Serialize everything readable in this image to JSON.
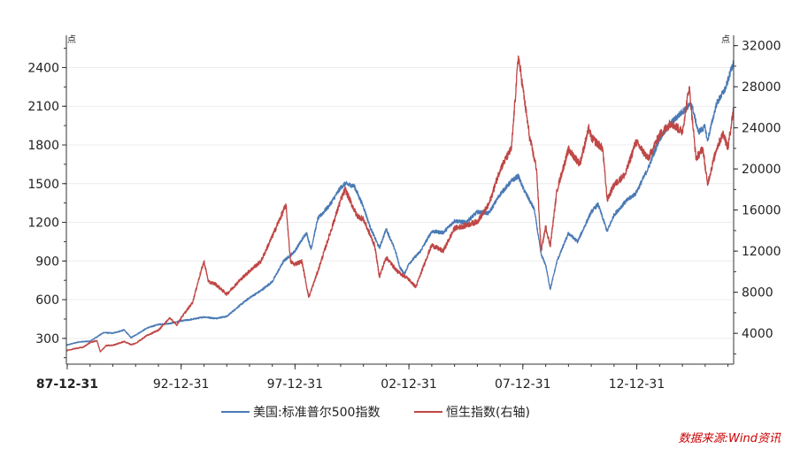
{
  "chart_data": {
    "type": "line",
    "y_unit_left": "点",
    "y_unit_right": "点",
    "x_ticks": [
      "87-12-31",
      "92-12-31",
      "97-12-31",
      "02-12-31",
      "07-12-31",
      "12-12-31"
    ],
    "x_range": [
      1987.96,
      2017.25
    ],
    "y_left_ticks": [
      300,
      600,
      900,
      1200,
      1500,
      1800,
      2100,
      2400
    ],
    "y_left_range": [
      100,
      2650
    ],
    "y_right_ticks": [
      4000,
      8000,
      12000,
      16000,
      20000,
      24000,
      28000,
      32000
    ],
    "y_right_range": [
      1000,
      33000
    ],
    "grid": true,
    "legend_position": "bottom",
    "series": [
      {
        "name": "美国:标准普尔500指数",
        "axis": "left",
        "color": "#4a7ab5",
        "points": [
          [
            1987.96,
            247
          ],
          [
            1988.5,
            272
          ],
          [
            1989.0,
            278
          ],
          [
            1989.6,
            345
          ],
          [
            1990.0,
            340
          ],
          [
            1990.5,
            365
          ],
          [
            1990.8,
            305
          ],
          [
            1991.0,
            326
          ],
          [
            1991.5,
            380
          ],
          [
            1992.0,
            408
          ],
          [
            1992.5,
            415
          ],
          [
            1993.0,
            435
          ],
          [
            1993.5,
            448
          ],
          [
            1994.0,
            466
          ],
          [
            1994.5,
            455
          ],
          [
            1995.0,
            470
          ],
          [
            1995.5,
            545
          ],
          [
            1996.0,
            615
          ],
          [
            1996.5,
            670
          ],
          [
            1997.0,
            740
          ],
          [
            1997.5,
            900
          ],
          [
            1997.96,
            970
          ],
          [
            1998.5,
            1120
          ],
          [
            1998.7,
            990
          ],
          [
            1999.0,
            1229
          ],
          [
            1999.5,
            1330
          ],
          [
            2000.0,
            1469
          ],
          [
            2000.2,
            1500
          ],
          [
            2000.6,
            1480
          ],
          [
            2001.0,
            1320
          ],
          [
            2001.3,
            1160
          ],
          [
            2001.7,
            1000
          ],
          [
            2002.0,
            1148
          ],
          [
            2002.4,
            980
          ],
          [
            2002.6,
            850
          ],
          [
            2002.8,
            800
          ],
          [
            2003.0,
            880
          ],
          [
            2003.5,
            975
          ],
          [
            2004.0,
            1130
          ],
          [
            2004.5,
            1120
          ],
          [
            2005.0,
            1211
          ],
          [
            2005.5,
            1200
          ],
          [
            2006.0,
            1280
          ],
          [
            2006.5,
            1270
          ],
          [
            2007.0,
            1418
          ],
          [
            2007.5,
            1520
          ],
          [
            2007.8,
            1560
          ],
          [
            2008.0,
            1468
          ],
          [
            2008.5,
            1300
          ],
          [
            2008.8,
            950
          ],
          [
            2009.0,
            870
          ],
          [
            2009.2,
            680
          ],
          [
            2009.5,
            900
          ],
          [
            2010.0,
            1115
          ],
          [
            2010.4,
            1050
          ],
          [
            2011.0,
            1280
          ],
          [
            2011.3,
            1340
          ],
          [
            2011.7,
            1130
          ],
          [
            2012.0,
            1257
          ],
          [
            2012.5,
            1360
          ],
          [
            2012.96,
            1426
          ],
          [
            2013.5,
            1620
          ],
          [
            2014.0,
            1848
          ],
          [
            2014.5,
            1970
          ],
          [
            2015.0,
            2058
          ],
          [
            2015.4,
            2120
          ],
          [
            2015.7,
            1900
          ],
          [
            2016.0,
            1940
          ],
          [
            2016.1,
            1830
          ],
          [
            2016.5,
            2120
          ],
          [
            2016.9,
            2240
          ],
          [
            2017.1,
            2360
          ],
          [
            2017.25,
            2450
          ]
        ]
      },
      {
        "name": "恒生指数(右轴)",
        "axis": "right",
        "color": "#bf4746",
        "points": [
          [
            1987.96,
            2303
          ],
          [
            1988.3,
            2500
          ],
          [
            1988.7,
            2650
          ],
          [
            1989.0,
            3100
          ],
          [
            1989.3,
            3300
          ],
          [
            1989.45,
            2200
          ],
          [
            1989.7,
            2800
          ],
          [
            1990.0,
            2837
          ],
          [
            1990.5,
            3200
          ],
          [
            1990.8,
            2900
          ],
          [
            1991.0,
            3024
          ],
          [
            1991.5,
            3800
          ],
          [
            1992.0,
            4297
          ],
          [
            1992.5,
            5500
          ],
          [
            1992.8,
            4800
          ],
          [
            1993.0,
            5512
          ],
          [
            1993.5,
            7000
          ],
          [
            1993.8,
            9500
          ],
          [
            1994.0,
            11000
          ],
          [
            1994.2,
            9000
          ],
          [
            1994.5,
            8800
          ],
          [
            1995.0,
            7800
          ],
          [
            1995.5,
            9000
          ],
          [
            1996.0,
            10073
          ],
          [
            1996.5,
            11000
          ],
          [
            1997.0,
            13451
          ],
          [
            1997.6,
            16500
          ],
          [
            1997.8,
            11000
          ],
          [
            1997.96,
            10722
          ],
          [
            1998.3,
            11000
          ],
          [
            1998.6,
            7500
          ],
          [
            1999.0,
            10048
          ],
          [
            1999.5,
            13500
          ],
          [
            2000.0,
            16962
          ],
          [
            2000.2,
            18000
          ],
          [
            2000.7,
            15500
          ],
          [
            2001.0,
            15095
          ],
          [
            2001.5,
            12500
          ],
          [
            2001.7,
            9500
          ],
          [
            2002.0,
            11397
          ],
          [
            2002.5,
            10000
          ],
          [
            2002.96,
            9321
          ],
          [
            2003.3,
            8500
          ],
          [
            2003.8,
            11500
          ],
          [
            2004.0,
            12575
          ],
          [
            2004.5,
            12000
          ],
          [
            2005.0,
            14230
          ],
          [
            2005.5,
            14500
          ],
          [
            2006.0,
            14876
          ],
          [
            2006.5,
            16500
          ],
          [
            2007.0,
            19964
          ],
          [
            2007.5,
            22000
          ],
          [
            2007.8,
            31000
          ],
          [
            2008.0,
            27813
          ],
          [
            2008.3,
            23000
          ],
          [
            2008.6,
            20000
          ],
          [
            2008.8,
            12000
          ],
          [
            2009.0,
            14387
          ],
          [
            2009.2,
            12500
          ],
          [
            2009.5,
            18000
          ],
          [
            2010.0,
            21873
          ],
          [
            2010.5,
            20500
          ],
          [
            2010.9,
            24000
          ],
          [
            2011.0,
            23035
          ],
          [
            2011.5,
            22000
          ],
          [
            2011.7,
            17000
          ],
          [
            2012.0,
            18434
          ],
          [
            2012.5,
            19500
          ],
          [
            2012.96,
            22657
          ],
          [
            2013.5,
            21000
          ],
          [
            2014.0,
            23306
          ],
          [
            2014.5,
            24500
          ],
          [
            2015.0,
            23605
          ],
          [
            2015.3,
            28000
          ],
          [
            2015.6,
            21000
          ],
          [
            2015.9,
            22000
          ],
          [
            2016.1,
            18500
          ],
          [
            2016.5,
            22000
          ],
          [
            2016.8,
            23500
          ],
          [
            2017.0,
            22000
          ],
          [
            2017.25,
            26000
          ]
        ]
      }
    ],
    "source": "数据来源:Wind资讯"
  }
}
